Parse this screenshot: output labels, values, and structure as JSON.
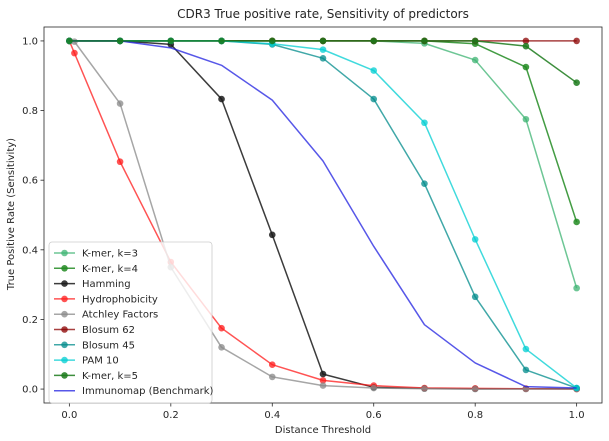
{
  "chart_data": {
    "type": "line",
    "title": "CDR3 True positive rate, Sensitivity of predictors",
    "xlabel": "Distance Threshold",
    "ylabel": "True Positive Rate (Sensitivity)",
    "xlim": [
      -0.05,
      1.05
    ],
    "ylim": [
      -0.04,
      1.04
    ],
    "xticks": [
      0.0,
      0.2,
      0.4,
      0.6,
      0.8,
      1.0
    ],
    "xtick_labels": [
      "0.0",
      "0.2",
      "0.4",
      "0.6",
      "0.8",
      "1.0"
    ],
    "yticks": [
      0.0,
      0.2,
      0.4,
      0.6,
      0.8,
      1.0
    ],
    "ytick_labels": [
      "0.0",
      "0.2",
      "0.4",
      "0.6",
      "0.8",
      "1.0"
    ],
    "grid": false,
    "legend_position": "lower-left",
    "series": [
      {
        "name": "K-mer, k=3",
        "color": "#3cb371",
        "alpha": 0.75,
        "markers": true,
        "x": [
          0.0,
          0.1,
          0.2,
          0.3,
          0.4,
          0.5,
          0.6,
          0.7,
          0.8,
          0.9,
          1.0
        ],
        "y": [
          1.0,
          1.0,
          1.0,
          1.0,
          1.0,
          1.0,
          1.0,
          0.993,
          0.945,
          0.775,
          0.29
        ]
      },
      {
        "name": "K-mer, k=4",
        "color": "#228b22",
        "alpha": 0.85,
        "markers": true,
        "x": [
          0.0,
          0.1,
          0.2,
          0.3,
          0.4,
          0.5,
          0.6,
          0.7,
          0.8,
          0.9,
          1.0
        ],
        "y": [
          1.0,
          1.0,
          1.0,
          1.0,
          1.0,
          1.0,
          1.0,
          1.0,
          0.992,
          0.925,
          0.48
        ]
      },
      {
        "name": "Hamming",
        "color": "#1a1a1a",
        "alpha": 0.85,
        "markers": true,
        "x": [
          0.0,
          0.1,
          0.2,
          0.3,
          0.4,
          0.5,
          0.6,
          0.7,
          0.8,
          0.9,
          1.0
        ],
        "y": [
          1.0,
          1.0,
          0.99,
          0.833,
          0.443,
          0.043,
          0.005,
          0.002,
          0.001,
          0.001,
          0.001
        ]
      },
      {
        "name": "Hydrophobicity",
        "color": "#ff1a1a",
        "alpha": 0.75,
        "markers": true,
        "x": [
          0.0,
          0.01,
          0.1,
          0.2,
          0.3,
          0.4,
          0.5,
          0.6,
          0.7,
          0.8,
          0.9,
          1.0
        ],
        "y": [
          1.0,
          0.965,
          0.653,
          0.365,
          0.175,
          0.07,
          0.025,
          0.01,
          0.003,
          0.002,
          0.001,
          0.0
        ]
      },
      {
        "name": "Atchley Factors",
        "color": "#888888",
        "alpha": 0.75,
        "markers": true,
        "x": [
          0.0,
          0.01,
          0.1,
          0.2,
          0.3,
          0.4,
          0.5,
          0.6,
          0.7,
          0.8,
          0.9,
          1.0
        ],
        "y": [
          1.0,
          0.998,
          0.82,
          0.35,
          0.12,
          0.035,
          0.01,
          0.003,
          0.001,
          0.0,
          0.0,
          0.0
        ]
      },
      {
        "name": "Blosum 62",
        "color": "#8b0000",
        "alpha": 0.75,
        "markers": true,
        "x": [
          0.0,
          0.1,
          0.2,
          0.3,
          0.4,
          0.5,
          0.6,
          0.7,
          0.8,
          0.9,
          1.0
        ],
        "y": [
          1.0,
          1.0,
          1.0,
          1.0,
          1.0,
          1.0,
          1.0,
          1.0,
          1.0,
          1.0,
          1.0
        ],
        "hidden_beneath_other_series": true
      },
      {
        "name": "Blosum 45",
        "color": "#008b8b",
        "alpha": 0.75,
        "markers": true,
        "x": [
          0.0,
          0.1,
          0.2,
          0.3,
          0.4,
          0.5,
          0.6,
          0.7,
          0.8,
          0.9,
          1.0
        ],
        "y": [
          1.0,
          1.0,
          1.0,
          1.0,
          0.99,
          0.95,
          0.833,
          0.59,
          0.265,
          0.055,
          0.003
        ]
      },
      {
        "name": "PAM 10",
        "color": "#00ced1",
        "alpha": 0.75,
        "markers": true,
        "x": [
          0.0,
          0.1,
          0.2,
          0.3,
          0.4,
          0.5,
          0.6,
          0.7,
          0.8,
          0.9,
          1.0
        ],
        "y": [
          1.0,
          1.0,
          1.0,
          1.0,
          0.992,
          0.975,
          0.915,
          0.765,
          0.43,
          0.115,
          0.003
        ]
      },
      {
        "name": "K-mer, k=5",
        "color": "#1b7a1b",
        "alpha": 0.85,
        "markers": true,
        "x": [
          0.0,
          0.1,
          0.2,
          0.3,
          0.4,
          0.5,
          0.6,
          0.7,
          0.8,
          0.9,
          1.0
        ],
        "y": [
          1.0,
          1.0,
          1.0,
          1.0,
          1.0,
          1.0,
          1.0,
          1.0,
          1.0,
          0.985,
          0.88
        ]
      },
      {
        "name": "Immunomap (Benchmark)",
        "color": "#1f1fe0",
        "alpha": 0.75,
        "markers": false,
        "x": [
          0.0,
          0.1,
          0.2,
          0.3,
          0.4,
          0.5,
          0.6,
          0.7,
          0.8,
          0.9,
          1.0
        ],
        "y": [
          1.0,
          1.0,
          0.98,
          0.93,
          0.83,
          0.655,
          0.41,
          0.185,
          0.075,
          0.007,
          0.003
        ]
      }
    ],
    "draw_order": [
      0,
      1,
      2,
      3,
      4,
      5,
      6,
      7,
      9,
      8
    ]
  }
}
